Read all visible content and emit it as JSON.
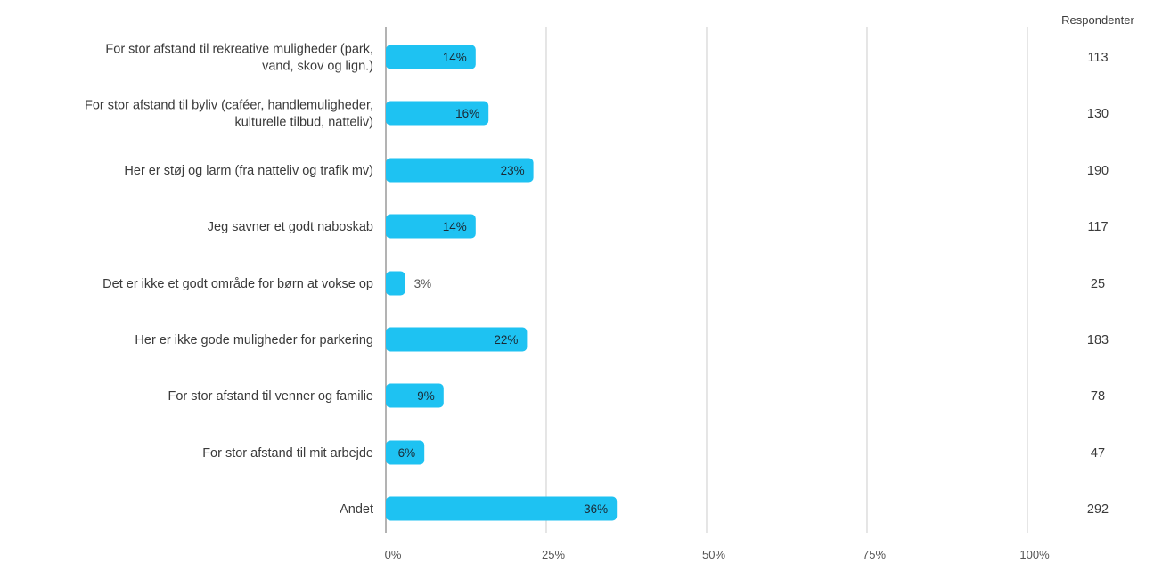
{
  "chart_data": {
    "type": "bar",
    "orientation": "horizontal",
    "categories": [
      [
        "For stor afstand til rekreative muligheder (park,",
        "vand, skov og lign.)"
      ],
      [
        "For stor afstand til byliv (caféer, handlemuligheder,",
        "kulturelle tilbud, natteliv)"
      ],
      [
        "Her er støj og larm (fra natteliv og trafik mv)"
      ],
      [
        "Jeg savner et godt naboskab"
      ],
      [
        "Det er ikke et godt område for børn at vokse op"
      ],
      [
        "Her er ikke gode muligheder for parkering"
      ],
      [
        "For stor afstand til venner og familie"
      ],
      [
        "For stor afstand til mit arbejde"
      ],
      [
        "Andet"
      ]
    ],
    "values": [
      14,
      16,
      23,
      14,
      3,
      22,
      9,
      6,
      36
    ],
    "data_labels": [
      "14%",
      "16%",
      "23%",
      "14%",
      "3%",
      "22%",
      "9%",
      "6%",
      "36%"
    ],
    "xlim": [
      0,
      100
    ],
    "x_ticks": [
      0,
      25,
      50,
      75,
      100
    ],
    "x_tick_labels": [
      "0%",
      "25%",
      "50%",
      "75%",
      "100%"
    ],
    "grid": true,
    "respondents_header": "Respondenter",
    "respondents": [
      "113",
      "130",
      "190",
      "117",
      "25",
      "183",
      "78",
      "47",
      "292"
    ],
    "colors": {
      "bar": "#1ec2f2",
      "grid": "#d4d4d4",
      "axis": "#9a9a9a",
      "text": "#3a3a3a",
      "label_inside": "#1a2a35",
      "label_outside": "#555555"
    }
  }
}
